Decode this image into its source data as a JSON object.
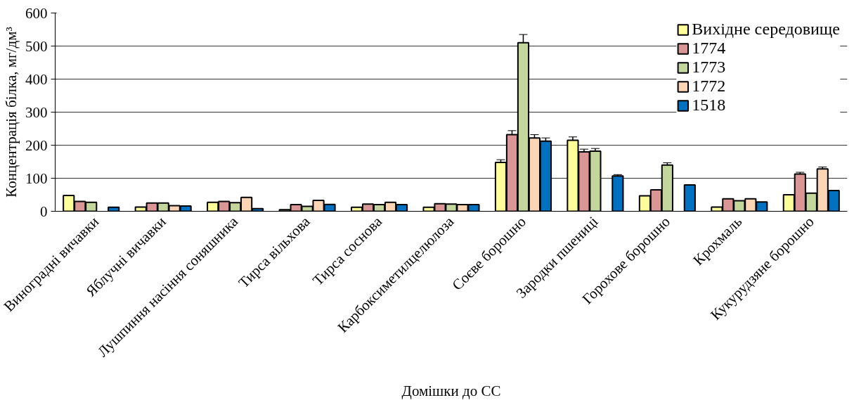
{
  "chart_data": {
    "type": "bar",
    "xlabel": "Домішки до СС",
    "ylabel": "Концентрація білка, мг/дм³",
    "categories": [
      "Виноградні вичавки",
      "Яблучні вичавки",
      "Лушпиння насіння соняшника",
      "Тирса вільхова",
      "Тирса соснова",
      "Карбоксиметилцелюлоза",
      "Соєве борошно",
      "Зародки пшениці",
      "Горохове борошно",
      "Крохмаль",
      "Кукурудзяне борошно"
    ],
    "series": [
      {
        "name": "Вихідне середовище",
        "color": "#ffff99",
        "values": [
          48,
          13,
          27,
          5,
          12,
          12,
          148,
          215,
          47,
          13,
          50
        ],
        "errors": [
          null,
          null,
          null,
          null,
          null,
          null,
          8,
          10,
          null,
          null,
          null
        ]
      },
      {
        "name": "1774",
        "color": "#d99694",
        "values": [
          30,
          25,
          30,
          20,
          22,
          23,
          232,
          180,
          65,
          38,
          113
        ],
        "errors": [
          null,
          null,
          null,
          null,
          null,
          null,
          12,
          8,
          null,
          null,
          5
        ]
      },
      {
        "name": "1773",
        "color": "#c3d69b",
        "values": [
          27,
          25,
          26,
          15,
          20,
          22,
          510,
          182,
          140,
          32,
          55
        ],
        "errors": [
          null,
          null,
          null,
          null,
          null,
          null,
          25,
          8,
          7,
          null,
          null
        ]
      },
      {
        "name": "1772",
        "color": "#fcd5b5",
        "values": [
          null,
          17,
          42,
          33,
          27,
          20,
          222,
          null,
          null,
          38,
          128
        ],
        "errors": [
          null,
          null,
          null,
          null,
          null,
          null,
          10,
          null,
          null,
          null,
          6
        ]
      },
      {
        "name": "1518",
        "color": "#0070c0",
        "values": [
          12,
          16,
          8,
          21,
          20,
          20,
          212,
          107,
          80,
          28,
          63
        ],
        "errors": [
          null,
          null,
          null,
          null,
          null,
          null,
          10,
          4,
          null,
          null,
          null
        ]
      }
    ],
    "ylim": [
      0,
      600
    ],
    "yticks": [
      0,
      100,
      200,
      300,
      400,
      500,
      600
    ],
    "grid": "y",
    "legend": "top right"
  }
}
